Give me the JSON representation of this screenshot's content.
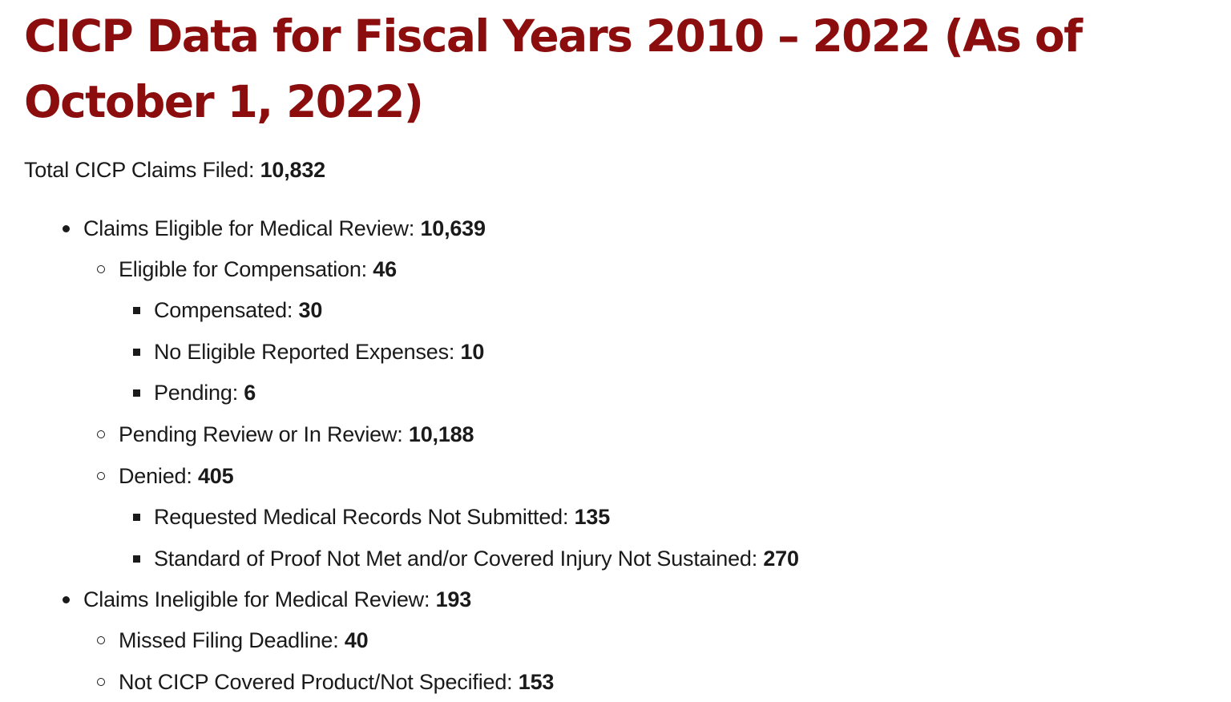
{
  "heading": {
    "title": "CICP Data for Fiscal Years 2010 – 2022 (As of October 1, 2022)"
  },
  "summary": {
    "total_label": "Total CICP Claims Filed: ",
    "total_value": "10,832"
  },
  "items": [
    {
      "label": "Claims Eligible for Medical Review: ",
      "value": "10,639"
    },
    {
      "label": "Eligible for Compensation: ",
      "value": "46"
    },
    {
      "label": "Compensated: ",
      "value": "30"
    },
    {
      "label": "No Eligible Reported Expenses: ",
      "value": "10"
    },
    {
      "label": "Pending: ",
      "value": "6"
    },
    {
      "label": "Pending Review or In Review: ",
      "value": "10,188"
    },
    {
      "label": "Denied: ",
      "value": "405"
    },
    {
      "label": "Requested Medical Records Not Submitted: ",
      "value": "135"
    },
    {
      "label": "Standard of Proof Not Met and/or Covered Injury Not Sustained: ",
      "value": "270"
    },
    {
      "label": "Claims Ineligible for Medical Review: ",
      "value": "193"
    },
    {
      "label": "Missed Filing Deadline: ",
      "value": "40"
    },
    {
      "label": "Not CICP Covered Product/Not Specified: ",
      "value": "153"
    }
  ]
}
